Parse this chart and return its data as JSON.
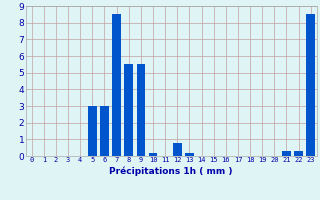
{
  "hours": [
    0,
    1,
    2,
    3,
    4,
    5,
    6,
    7,
    8,
    9,
    10,
    11,
    12,
    13,
    14,
    15,
    16,
    17,
    18,
    19,
    20,
    21,
    22,
    23
  ],
  "values": [
    0,
    0,
    0,
    0,
    0,
    3.0,
    3.0,
    8.5,
    5.5,
    5.5,
    0.2,
    0,
    0.8,
    0.2,
    0,
    0,
    0,
    0,
    0,
    0,
    0,
    0.3,
    0.3,
    8.5
  ],
  "bar_color": "#0055cc",
  "bg_color": "#dff5f5",
  "grid_color": "#c0a0a0",
  "xlabel": "Précipitations 1h ( mm )",
  "xlabel_fontsize": 6.5,
  "xlabel_color": "#0000aa",
  "tick_color": "#0000aa",
  "tick_fontsize": 5.0,
  "ytick_fontsize": 6.5,
  "ylim": [
    0,
    9
  ],
  "yticks": [
    0,
    1,
    2,
    3,
    4,
    5,
    6,
    7,
    8,
    9
  ],
  "figsize": [
    3.2,
    2.0
  ],
  "dpi": 100
}
